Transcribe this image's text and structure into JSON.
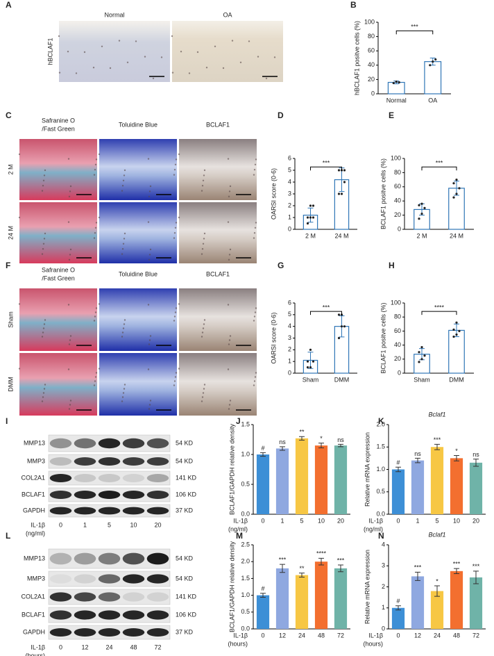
{
  "panel_labels": [
    "A",
    "B",
    "C",
    "D",
    "E",
    "F",
    "G",
    "H",
    "I",
    "J",
    "K",
    "L",
    "M",
    "N"
  ],
  "images": [
    {
      "columns": [
        [
          "Normal"
        ],
        [
          "OA"
        ]
      ],
      "rows": [
        "hBCLAF1"
      ]
    },
    {
      "columns": [
        [
          "Safranine O",
          "/Fast Green"
        ],
        [
          "Toluidine Blue"
        ],
        [
          "BCLAF1"
        ]
      ],
      "rows": [
        "2 M",
        "24 M"
      ]
    },
    {
      "columns": [
        [
          "Safranine O",
          "/Fast Green"
        ],
        [
          "Toluidine Blue"
        ],
        [
          "BCLAF1"
        ]
      ],
      "rows": [
        "Sham",
        "DMM"
      ]
    }
  ],
  "blots": [
    {
      "proteins": [
        {
          "name": "MMP13",
          "size": "54 KD"
        },
        {
          "name": "MMP3",
          "size": "54 KD"
        },
        {
          "name": "COL2A1",
          "size": "141 KD"
        },
        {
          "name": "BCLAF1",
          "size": "106 KD"
        },
        {
          "name": "GAPDH",
          "size": "37 KD"
        }
      ],
      "treatment": "IL-1β",
      "unit": "(ng/ml)",
      "doses": [
        0,
        1,
        5,
        10,
        20
      ]
    },
    {
      "proteins": [
        {
          "name": "MMP13",
          "size": "54 KD"
        },
        {
          "name": "MMP3",
          "size": "54 KD"
        },
        {
          "name": "COL2A1",
          "size": "141 KD"
        },
        {
          "name": "BCLAF1",
          "size": "106 KD"
        },
        {
          "name": "GAPDH",
          "size": "37 KD"
        }
      ],
      "treatment": "IL-1β",
      "unit": "(hours)",
      "doses": [
        0,
        12,
        24,
        48,
        72
      ]
    }
  ],
  "chart_data": [
    {
      "type": "bar",
      "ylabel": "hBCLAF1 positve cells (%)",
      "categories": [
        "Normal",
        "OA"
      ],
      "values": [
        16,
        45
      ],
      "errors": [
        2,
        5
      ],
      "points": [
        [
          15,
          17,
          16
        ],
        [
          40,
          45,
          48
        ]
      ],
      "color": "#2e75b6",
      "ylim": [
        0,
        100
      ],
      "yticks": [
        0,
        20,
        40,
        60,
        80,
        100
      ],
      "significance": "***"
    },
    {
      "type": "bar",
      "ylabel": "OARSI score (0-6)",
      "categories": [
        "2 M",
        "24 M"
      ],
      "values": [
        1.2,
        4.2
      ],
      "errors": [
        0.6,
        1.0
      ],
      "points": [
        [
          0.5,
          1,
          1,
          1,
          2,
          2
        ],
        [
          3,
          3,
          4,
          5,
          5,
          5
        ]
      ],
      "color": "#2e75b6",
      "ylim": [
        0,
        6
      ],
      "yticks": [
        0,
        1,
        2,
        3,
        4,
        5,
        6
      ],
      "significance": "***"
    },
    {
      "type": "bar",
      "ylabel": "BCLAF1 positve cells (%)",
      "categories": [
        "2 M",
        "24 M"
      ],
      "values": [
        28,
        58
      ],
      "errors": [
        8,
        10
      ],
      "points": [
        [
          15,
          22,
          30,
          34,
          36
        ],
        [
          45,
          50,
          58,
          65,
          70
        ]
      ],
      "color": "#2e75b6",
      "ylim": [
        0,
        100
      ],
      "yticks": [
        0,
        20,
        40,
        60,
        80,
        100
      ],
      "significance": "***"
    },
    {
      "type": "bar",
      "ylabel": "OARSI score (0-6)",
      "categories": [
        "Sham",
        "DMM"
      ],
      "values": [
        1.1,
        4.0
      ],
      "errors": [
        0.7,
        0.9
      ],
      "points": [
        [
          0.5,
          0.5,
          1,
          1,
          2
        ],
        [
          3,
          4,
          4,
          5,
          5
        ]
      ],
      "color": "#2e75b6",
      "ylim": [
        0,
        6
      ],
      "yticks": [
        0,
        1,
        2,
        3,
        4,
        5,
        6
      ],
      "significance": "***"
    },
    {
      "type": "bar",
      "ylabel": "BCLAF1 positve cells (%)",
      "categories": [
        "Sham",
        "DMM"
      ],
      "values": [
        27,
        61
      ],
      "errors": [
        8,
        9
      ],
      "points": [
        [
          16,
          20,
          25,
          30,
          37
        ],
        [
          52,
          55,
          60,
          62,
          72
        ]
      ],
      "color": "#2e75b6",
      "ylim": [
        0,
        100
      ],
      "yticks": [
        0,
        20,
        40,
        60,
        80,
        100
      ],
      "significance": "****"
    },
    {
      "type": "bar",
      "ylabel": "BCLAF1/GAPDH relative density",
      "xlabel": [
        "IL-1β",
        "(ng/ml)"
      ],
      "categories": [
        0,
        1,
        5,
        10,
        20
      ],
      "values": [
        1.0,
        1.1,
        1.27,
        1.15,
        1.15
      ],
      "errors": [
        0.03,
        0.03,
        0.03,
        0.04,
        0.02
      ],
      "colors": [
        "#3d8fd6",
        "#8fa8e0",
        "#f7c744",
        "#f36f2f",
        "#6fb3a8"
      ],
      "ylim": [
        0,
        1.5
      ],
      "yticks": [
        {
          "value": 0,
          "label": "0.0"
        },
        {
          "value": 0.5,
          "label": "0.5"
        },
        {
          "value": 1,
          "label": "1.0"
        },
        {
          "value": 1.5,
          "label": "1.5"
        }
      ],
      "annotations": [
        "#",
        "ns",
        "**",
        "*",
        "ns"
      ]
    },
    {
      "type": "bar",
      "title": "Bclaf1",
      "ylabel": "Relative mRNA expression",
      "xlabel": [
        "IL-1β",
        "(ng/ml)"
      ],
      "categories": [
        0,
        1,
        5,
        10,
        20
      ],
      "values": [
        1.0,
        1.2,
        1.5,
        1.25,
        1.15
      ],
      "errors": [
        0.05,
        0.05,
        0.06,
        0.06,
        0.08
      ],
      "colors": [
        "#3d8fd6",
        "#8fa8e0",
        "#f7c744",
        "#f36f2f",
        "#6fb3a8"
      ],
      "ylim": [
        0,
        2
      ],
      "yticks": [
        {
          "value": 0,
          "label": "0.0"
        },
        {
          "value": 0.5,
          "label": "0.5"
        },
        {
          "value": 1,
          "label": "1.0"
        },
        {
          "value": 1.5,
          "label": "1.5"
        },
        {
          "value": 2,
          "label": "2.0"
        }
      ],
      "annotations": [
        "#",
        "ns",
        "***",
        "*",
        "ns"
      ]
    },
    {
      "type": "bar",
      "ylabel": "BCLAF1/GAPDH relative density",
      "xlabel": [
        "IL-1β",
        "(hours)"
      ],
      "categories": [
        0,
        12,
        24,
        48,
        72
      ],
      "values": [
        1.0,
        1.8,
        1.6,
        2.0,
        1.8
      ],
      "errors": [
        0.06,
        0.12,
        0.06,
        0.1,
        0.1
      ],
      "colors": [
        "#3d8fd6",
        "#8fa8e0",
        "#f7c744",
        "#f36f2f",
        "#6fb3a8"
      ],
      "ylim": [
        0,
        2.5
      ],
      "yticks": [
        {
          "value": 0,
          "label": "0.0"
        },
        {
          "value": 0.5,
          "label": "0.5"
        },
        {
          "value": 1,
          "label": "1.0"
        },
        {
          "value": 1.5,
          "label": "1.5"
        },
        {
          "value": 2,
          "label": "2.0"
        },
        {
          "value": 2.5,
          "label": "2.5"
        }
      ],
      "annotations": [
        "#",
        "***",
        "**",
        "****",
        "***"
      ]
    },
    {
      "type": "bar",
      "title": "Bclaf1",
      "ylabel": "Relative mRNA expression",
      "xlabel": [
        "IL-1β",
        "(hours)"
      ],
      "categories": [
        0,
        12,
        24,
        48,
        72
      ],
      "values": [
        1.0,
        2.5,
        1.8,
        2.75,
        2.45
      ],
      "errors": [
        0.1,
        0.2,
        0.25,
        0.12,
        0.3
      ],
      "colors": [
        "#3d8fd6",
        "#8fa8e0",
        "#f7c744",
        "#f36f2f",
        "#6fb3a8"
      ],
      "ylim": [
        0,
        4
      ],
      "yticks": [
        0,
        1,
        2,
        3,
        4
      ],
      "annotations": [
        "#",
        "***",
        "*",
        "***",
        "***"
      ]
    }
  ]
}
